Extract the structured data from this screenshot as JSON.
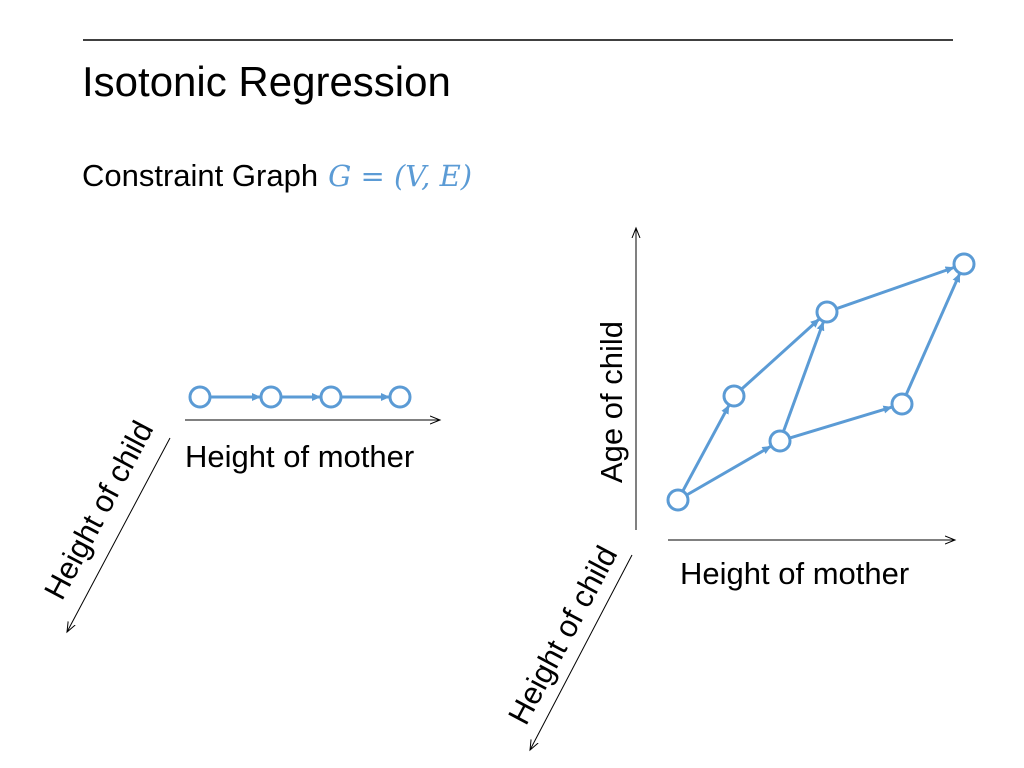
{
  "header": {
    "title": "Isotonic Regression"
  },
  "subtitle": {
    "text": "Constraint Graph",
    "formula": "G = (V, E)"
  },
  "left_diagram": {
    "x_axis_label": "Height of mother",
    "z_axis_label": "Height of child"
  },
  "right_diagram": {
    "x_axis_label": "Height of mother",
    "y_axis_label": "Age of child",
    "z_axis_label": "Height of child"
  }
}
